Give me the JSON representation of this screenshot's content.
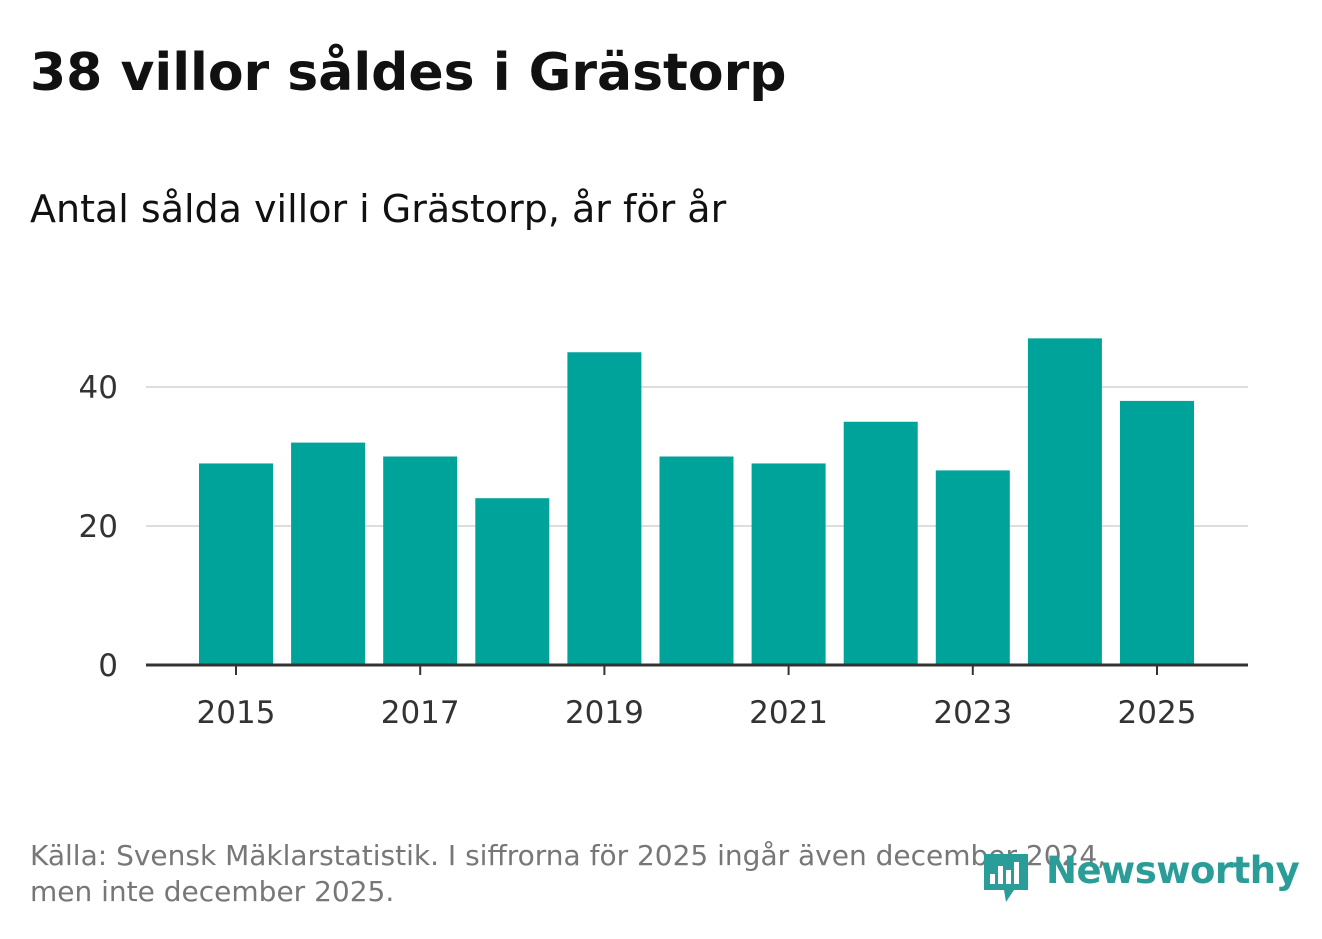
{
  "header": {
    "title": "38 villor såldes i Grästorp",
    "subtitle": "Antal sålda villor i Grästorp, år för år"
  },
  "footer": {
    "source_line1": "Källa: Svensk Mäklarstatistik. I siffrorna för 2025 ingår även december 2024,",
    "source_line2": "men inte december 2025."
  },
  "brand": {
    "name": "Newsworthy",
    "icon": "newsworthy-bar-chart-icon",
    "color": "#2a9d98"
  },
  "chart_data": {
    "type": "bar",
    "categories": [
      "2015",
      "2016",
      "2017",
      "2018",
      "2019",
      "2020",
      "2021",
      "2022",
      "2023",
      "2024",
      "2025"
    ],
    "values": [
      29,
      32,
      30,
      24,
      45,
      30,
      29,
      35,
      28,
      47,
      38
    ],
    "x_tick_labels": [
      "2015",
      "2017",
      "2019",
      "2021",
      "2023",
      "2025"
    ],
    "y_ticks": [
      0,
      20,
      40
    ],
    "ylim": [
      0,
      48
    ],
    "grid": true,
    "bar_color": "#00a39a"
  }
}
